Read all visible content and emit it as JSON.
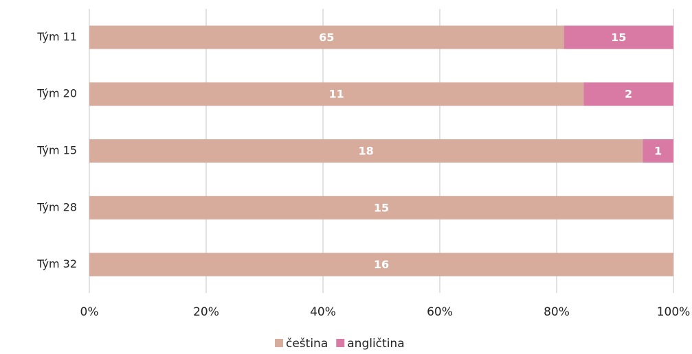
{
  "chart_data": {
    "type": "bar",
    "orientation": "horizontal",
    "stacking": "percent",
    "categories": [
      "Tým 11",
      "Tým 20",
      "Tým 15",
      "Tým 28",
      "Tým 32"
    ],
    "series": [
      {
        "name": "čeština",
        "color": "#d8ac9d",
        "values": [
          65,
          11,
          18,
          15,
          16
        ]
      },
      {
        "name": "angličtina",
        "color": "#d97aa4",
        "values": [
          15,
          2,
          1,
          null,
          null
        ]
      }
    ],
    "xlim": [
      0,
      100
    ],
    "xticks": [
      {
        "value": 0,
        "label": "0%"
      },
      {
        "value": 20,
        "label": "20%"
      },
      {
        "value": 40,
        "label": "40%"
      },
      {
        "value": 60,
        "label": "60%"
      },
      {
        "value": 80,
        "label": "80%"
      },
      {
        "value": 100,
        "label": "100%"
      }
    ],
    "grid": true,
    "legend": "bottom"
  }
}
